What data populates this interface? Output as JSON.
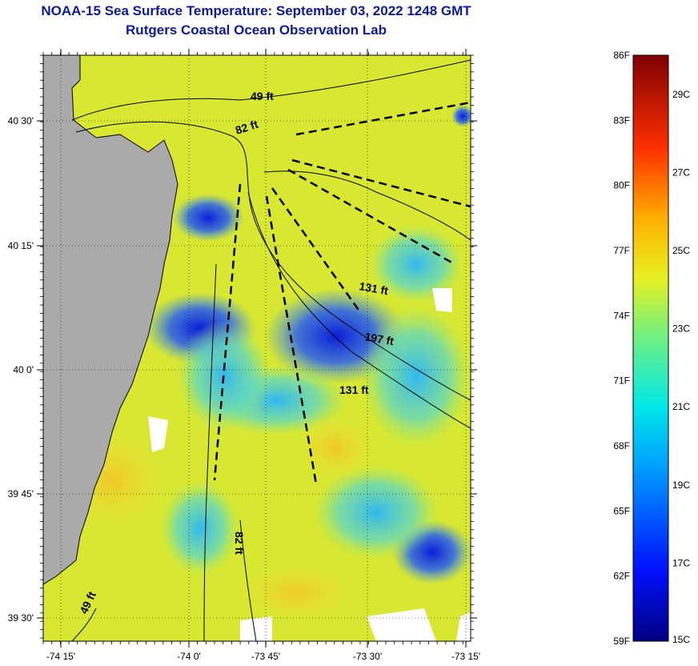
{
  "header": {
    "title": "NOAA-15 Sea Surface Temperature:  September 03, 2022 1248 GMT",
    "subtitle": "Rutgers Coastal Ocean Observation Lab"
  },
  "axes": {
    "lat_ticks": [
      "40 30'",
      "40 15'",
      "40 0'",
      "39 45'",
      "39 30'"
    ],
    "lon_ticks": [
      "-74 15'",
      "-74 0'",
      "-73 45'",
      "-73 30'",
      "-73 15'"
    ]
  },
  "depth_labels": [
    "49 ft",
    "82 ft",
    "131 ft",
    "197 ft",
    "131 ft",
    "82 ft",
    "49 ft"
  ],
  "colorbar": {
    "f_labels": [
      "86F",
      "83F",
      "80F",
      "77F",
      "74F",
      "71F",
      "68F",
      "65F",
      "62F",
      "59F"
    ],
    "c_labels": [
      "29C",
      "27C",
      "25C",
      "23C",
      "21C",
      "19C",
      "17C",
      "15C"
    ],
    "range_f": [
      59,
      86
    ]
  },
  "colors": {
    "title": "#0b1a9e",
    "land": "#aaaaaa",
    "sea_dominant": "#d8e830"
  }
}
